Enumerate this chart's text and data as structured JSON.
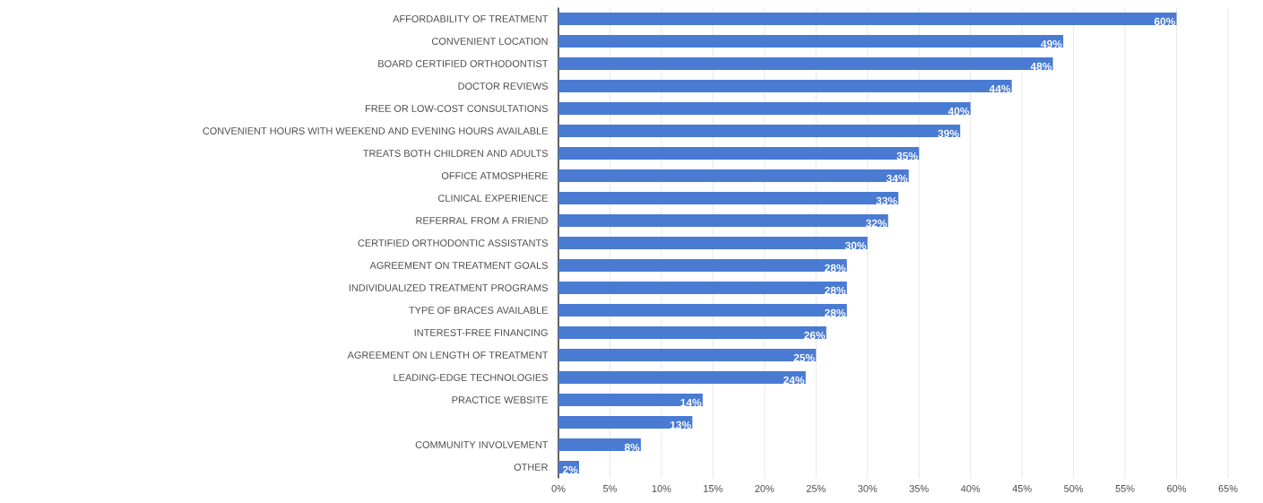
{
  "chart_data": {
    "type": "bar",
    "orientation": "horizontal",
    "color": "#4a7bd3",
    "categories": [
      "AFFORDABILITY OF TREATMENT",
      "CONVENIENT LOCATION",
      "BOARD CERTIFIED ORTHODONTIST",
      "DOCTOR REVIEWS",
      "FREE OR LOW-COST CONSULTATIONS",
      "CONVENIENT HOURS WITH WEEKEND AND EVENING HOURS AVAILABLE",
      "TREATS BOTH CHILDREN AND ADULTS",
      "OFFICE ATMOSPHERE",
      "CLINICAL EXPERIENCE",
      "REFERRAL FROM A FRIEND",
      "CERTIFIED ORTHODONTIC ASSISTANTS",
      "AGREEMENT ON TREATMENT GOALS",
      "INDIVIDUALIZED TREATMENT PROGRAMS",
      "TYPE OF BRACES AVAILABLE",
      "INTEREST-FREE FINANCING",
      "AGREEMENT ON LENGTH OF TREATMENT",
      "LEADING-EDGE TECHNOLOGIES",
      "PRACTICE WEBSITE",
      null,
      "COMMUNITY INVOLVEMENT",
      "OTHER"
    ],
    "values": [
      60,
      49,
      48,
      44,
      40,
      39,
      35,
      34,
      33,
      32,
      30,
      28,
      28,
      28,
      26,
      25,
      24,
      14,
      13,
      8,
      2
    ],
    "value_labels": [
      "60%",
      "49%",
      "48%",
      "44%",
      "40%",
      "39%",
      "35%",
      "34%",
      "33%",
      "32%",
      "30%",
      "28%",
      "28%",
      "28%",
      "26%",
      "25%",
      "24%",
      "14%",
      "13%",
      "8%",
      "2%"
    ],
    "xlim": [
      0,
      65
    ],
    "xticks": [
      {
        "value": 0,
        "label": "0%"
      },
      {
        "value": 5,
        "label": "5%"
      },
      {
        "value": 10,
        "label": "10%"
      },
      {
        "value": 15,
        "label": "15%"
      },
      {
        "value": 20,
        "label": "20%"
      },
      {
        "value": 25,
        "label": "25%"
      },
      {
        "value": 30,
        "label": "30%"
      },
      {
        "value": 35,
        "label": "35%"
      },
      {
        "value": 40,
        "label": "40%"
      },
      {
        "value": 45,
        "label": "45%"
      },
      {
        "value": 50,
        "label": "50%"
      },
      {
        "value": 55,
        "label": "55%"
      },
      {
        "value": 60,
        "label": "60%"
      },
      {
        "value": 65,
        "label": "65%"
      }
    ],
    "grid": "x"
  }
}
